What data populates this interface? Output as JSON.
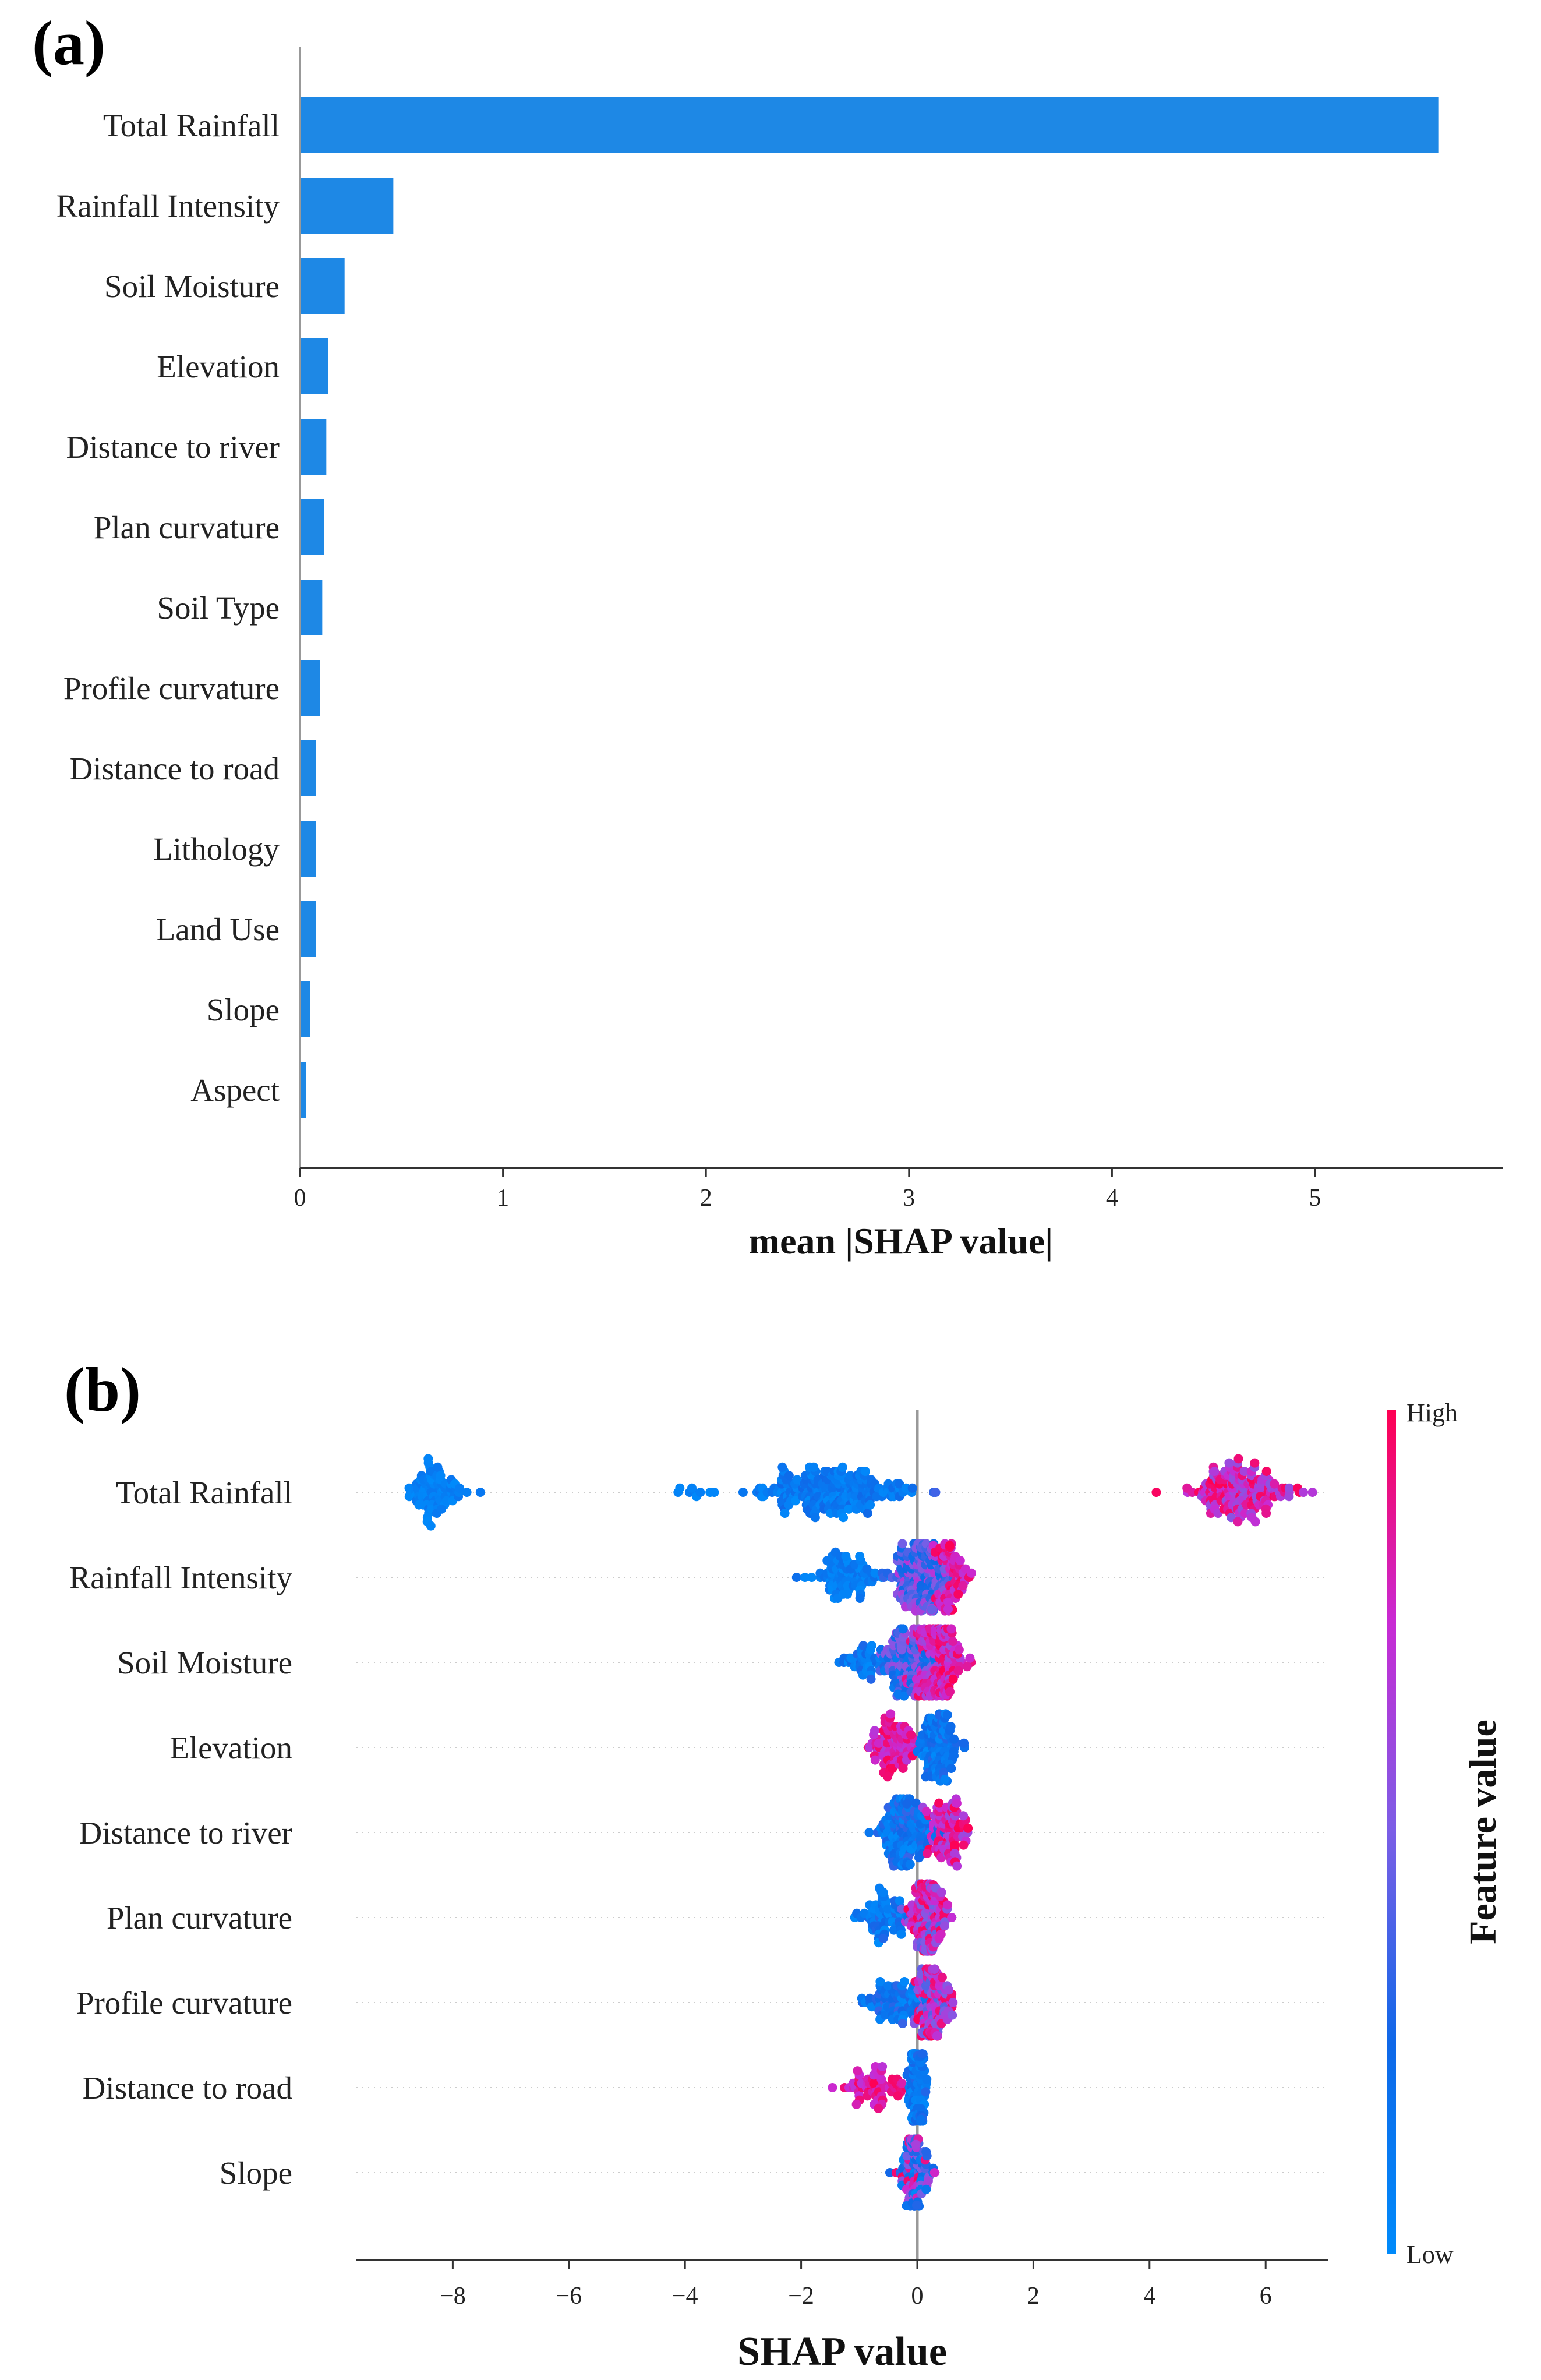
{
  "chart_data": [
    {
      "panel": "(a)",
      "type": "bar",
      "orientation": "horizontal",
      "xlabel": "mean |SHAP value|",
      "xticks": [
        0,
        1,
        2,
        3,
        4,
        5
      ],
      "xlim": [
        0,
        5.9
      ],
      "bar_color": "#1e88e5",
      "categories": [
        "Total Rainfall",
        "Rainfall Intensity",
        "Soil Moisture",
        "Elevation",
        "Distance to river",
        "Plan curvature",
        "Soil Type",
        "Profile curvature",
        "Distance to road",
        "Lithology",
        "Land Use",
        "Slope",
        "Aspect"
      ],
      "values": [
        5.61,
        0.46,
        0.22,
        0.14,
        0.13,
        0.12,
        0.11,
        0.1,
        0.08,
        0.08,
        0.08,
        0.05,
        0.03
      ]
    },
    {
      "panel": "(b)",
      "type": "scatter",
      "subtype": "beeswarm",
      "xlabel": "SHAP value",
      "xticks": [
        -8,
        -6,
        -4,
        -2,
        0,
        2,
        4,
        6
      ],
      "tick_labels": [
        "−8",
        "−6",
        "−4",
        "−2",
        "0",
        "2",
        "4",
        "6"
      ],
      "xlim": [
        -9.5,
        7.1
      ],
      "colorbar": {
        "title": "Feature value",
        "high_label": "High",
        "low_label": "Low",
        "high_color": "#ff0052",
        "low_color": "#008bfb"
      },
      "categories": [
        "Total Rainfall",
        "Rainfall Intensity",
        "Soil Moisture",
        "Elevation",
        "Distance to river",
        "Plan curvature",
        "Profile curvature",
        "Distance to road",
        "Slope"
      ],
      "series": [
        {
          "name": "Total Rainfall",
          "clusters": [
            {
              "center": -8.3,
              "spread": 0.55,
              "count": 90,
              "value_low": 0.0,
              "value_high": 0.15
            },
            {
              "center": -3.9,
              "spread": 0.45,
              "count": 9,
              "value_low": 0.0,
              "value_high": 0.15
            },
            {
              "center": -1.5,
              "spread": 1.3,
              "count": 220,
              "value_low": 0.0,
              "value_high": 0.25
            },
            {
              "center": 0.25,
              "spread": 0.1,
              "count": 2,
              "value_low": 0.2,
              "value_high": 0.4
            },
            {
              "center": 5.6,
              "spread": 0.9,
              "count": 170,
              "value_low": 0.55,
              "value_high": 1.0
            }
          ]
        },
        {
          "name": "Rainfall Intensity",
          "clusters": [
            {
              "center": -1.3,
              "spread": 0.7,
              "count": 90,
              "value_low": 0.0,
              "value_high": 0.2
            },
            {
              "center": 0.05,
              "spread": 0.6,
              "count": 180,
              "value_low": 0.2,
              "value_high": 0.7
            },
            {
              "center": 0.55,
              "spread": 0.35,
              "count": 70,
              "value_low": 0.7,
              "value_high": 1.0
            }
          ]
        },
        {
          "name": "Soil Moisture",
          "clusters": [
            {
              "center": -0.9,
              "spread": 0.45,
              "count": 40,
              "value_low": 0.0,
              "value_high": 0.3
            },
            {
              "center": -0.2,
              "spread": 0.5,
              "count": 110,
              "value_low": 0.1,
              "value_high": 0.6
            },
            {
              "center": 0.35,
              "spread": 0.45,
              "count": 180,
              "value_low": 0.6,
              "value_high": 1.0
            }
          ]
        },
        {
          "name": "Elevation",
          "clusters": [
            {
              "center": -0.4,
              "spread": 0.45,
              "count": 90,
              "value_low": 0.65,
              "value_high": 1.0
            },
            {
              "center": 0.35,
              "spread": 0.4,
              "count": 110,
              "value_low": 0.0,
              "value_high": 0.3
            }
          ]
        },
        {
          "name": "Distance to river",
          "clusters": [
            {
              "center": -0.2,
              "spread": 0.5,
              "count": 150,
              "value_low": 0.0,
              "value_high": 0.35
            },
            {
              "center": 0.5,
              "spread": 0.4,
              "count": 90,
              "value_low": 0.6,
              "value_high": 1.0
            }
          ]
        },
        {
          "name": "Plan curvature",
          "clusters": [
            {
              "center": -0.6,
              "spread": 0.5,
              "count": 70,
              "value_low": 0.0,
              "value_high": 0.3
            },
            {
              "center": 0.2,
              "spread": 0.35,
              "count": 140,
              "value_low": 0.4,
              "value_high": 1.0
            }
          ]
        },
        {
          "name": "Profile curvature",
          "clusters": [
            {
              "center": -0.4,
              "spread": 0.5,
              "count": 80,
              "value_low": 0.0,
              "value_high": 0.35
            },
            {
              "center": 0.25,
              "spread": 0.35,
              "count": 130,
              "value_low": 0.4,
              "value_high": 1.0
            }
          ]
        },
        {
          "name": "Distance to road",
          "clusters": [
            {
              "center": -0.7,
              "spread": 0.55,
              "count": 60,
              "value_low": 0.7,
              "value_high": 1.0
            },
            {
              "center": 0.0,
              "spread": 0.15,
              "count": 140,
              "value_low": 0.0,
              "value_high": 0.3
            }
          ]
        },
        {
          "name": "Slope",
          "clusters": [
            {
              "center": -0.05,
              "spread": 0.3,
              "count": 110,
              "value_low": 0.0,
              "value_high": 1.0
            }
          ]
        }
      ]
    }
  ]
}
